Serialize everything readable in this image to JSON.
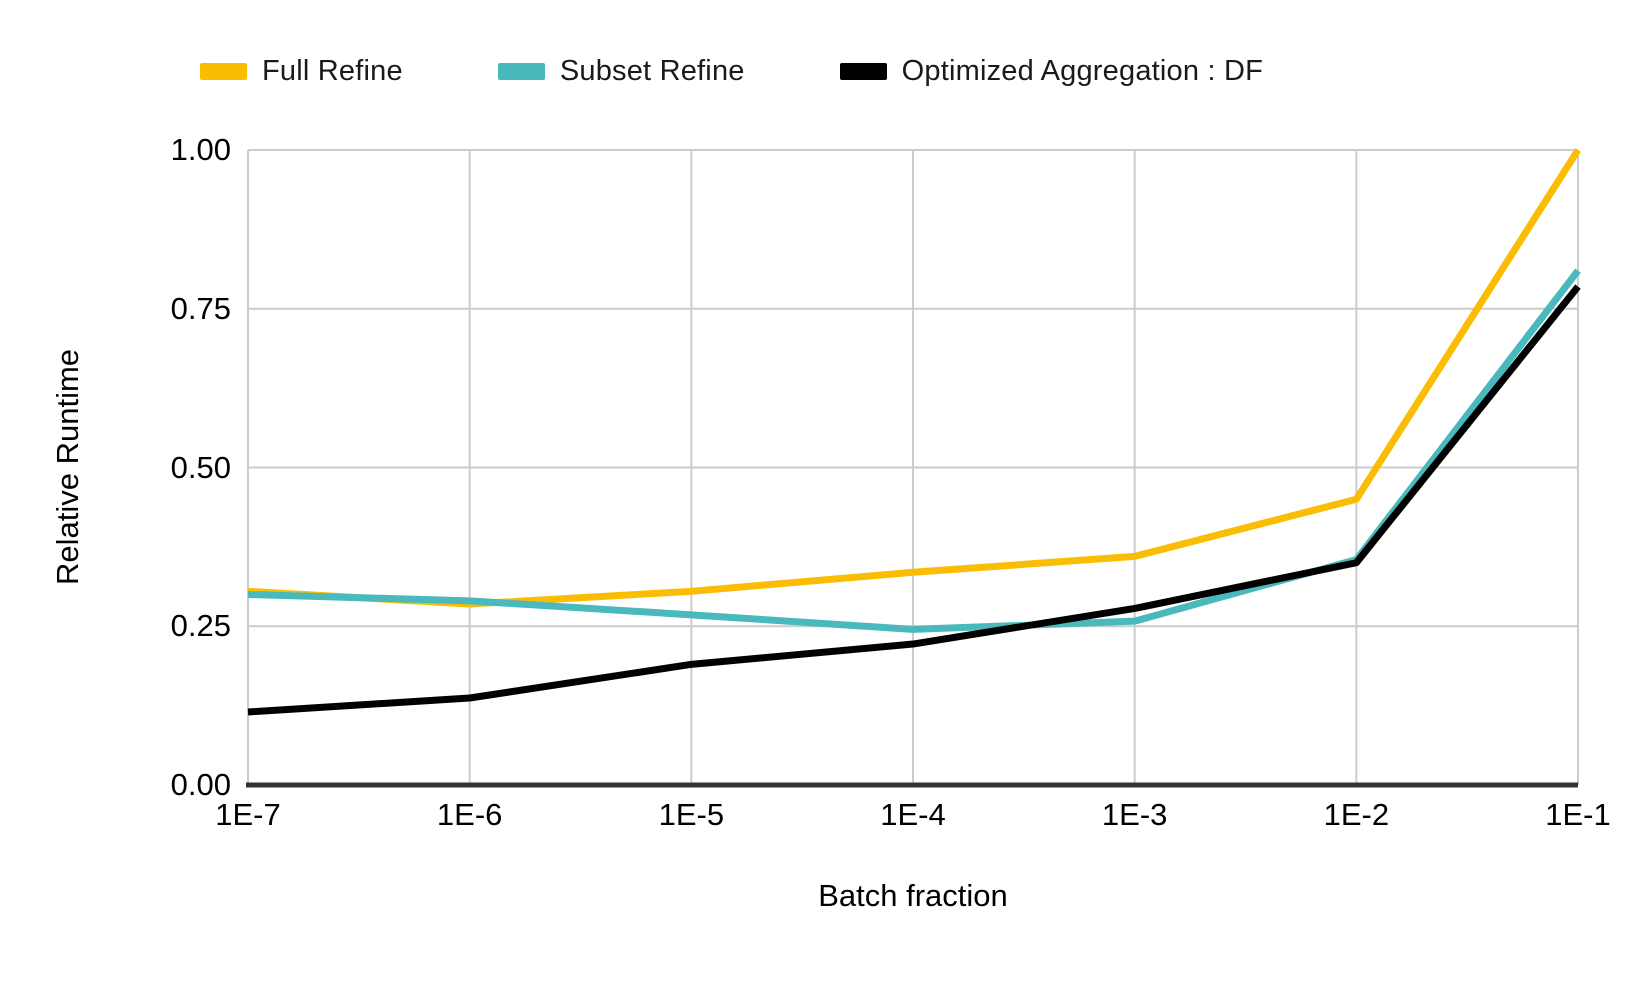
{
  "legend": {
    "items": [
      {
        "label": "Full Refine",
        "color": "#FBBC04",
        "key": "full-refine"
      },
      {
        "label": "Subset Refine",
        "color": "#49B9BE",
        "key": "subset-refine"
      },
      {
        "label": "Optimized Aggregation : DF",
        "color": "#000000",
        "key": "optimized-aggregation-df"
      }
    ]
  },
  "chart_data": {
    "type": "line",
    "categories": [
      "1E-7",
      "1E-6",
      "1E-5",
      "1E-4",
      "1E-3",
      "1E-2",
      "1E-1"
    ],
    "series": [
      {
        "name": "Full Refine",
        "color": "#FBBC04",
        "values": [
          0.305,
          0.285,
          0.305,
          0.335,
          0.36,
          0.45,
          1.0
        ]
      },
      {
        "name": "Subset Refine",
        "color": "#49B9BE",
        "values": [
          0.3,
          0.29,
          0.268,
          0.245,
          0.258,
          0.355,
          0.81
        ]
      },
      {
        "name": "Optimized Aggregation : DF",
        "color": "#000000",
        "values": [
          0.115,
          0.137,
          0.19,
          0.222,
          0.278,
          0.35,
          0.785
        ]
      }
    ],
    "title": "",
    "xlabel": "Batch fraction",
    "ylabel": "Relative Runtime",
    "y_ticks": [
      0.0,
      0.25,
      0.5,
      0.75,
      1.0
    ],
    "y_tick_labels": [
      "0.00",
      "0.25",
      "0.50",
      "0.75",
      "1.00"
    ],
    "ylim": [
      0,
      1
    ],
    "grid": true,
    "legend_position": "top"
  },
  "colors": {
    "background": "#FFFFFF",
    "gridline": "#CCCCCC",
    "baseline_axis": "#333333",
    "text": "#000000"
  }
}
